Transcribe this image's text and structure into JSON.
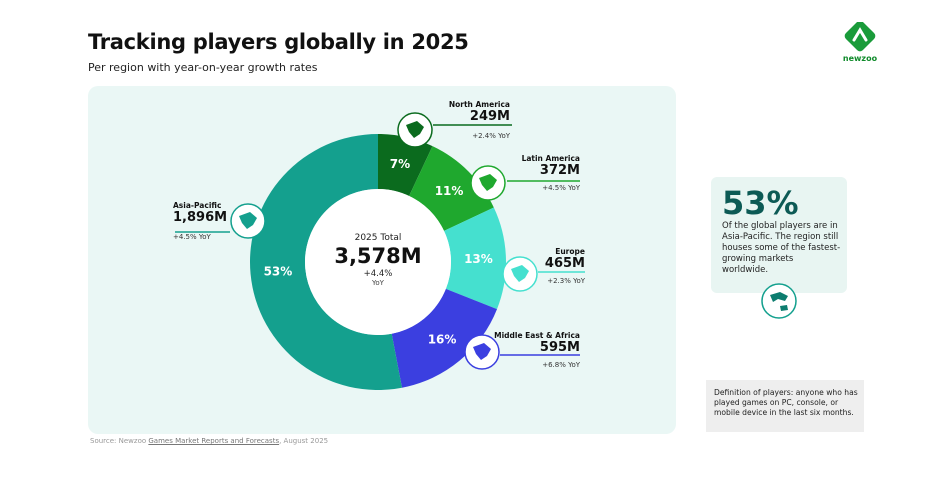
{
  "header": {
    "title": "Tracking players globally in 2025",
    "subtitle": "Per region with year-on-year growth rates"
  },
  "brand": {
    "logo_text": "newzoo",
    "color": "#1a9b3a"
  },
  "chart_data": {
    "type": "pie",
    "center": {
      "label": "2025 Total",
      "value": "3,578M",
      "growth": "+4.4%",
      "growth_unit": "YoY"
    },
    "slices": [
      {
        "region": "North America",
        "percent_label": "7%",
        "share": 7,
        "value": "249M",
        "growth": "+2.4% YoY",
        "color": "#0b6b1e",
        "icon": "north-america-map-icon"
      },
      {
        "region": "Latin America",
        "percent_label": "11%",
        "share": 11,
        "value": "372M",
        "growth": "+4.5% YoY",
        "color": "#1fa82e",
        "icon": "latin-america-map-icon"
      },
      {
        "region": "Europe",
        "percent_label": "13%",
        "share": 13,
        "value": "465M",
        "growth": "+2.3% YoY",
        "color": "#45e0cf",
        "icon": "europe-map-icon"
      },
      {
        "region": "Middle East & Africa",
        "percent_label": "16%",
        "share": 16,
        "value": "595M",
        "growth": "+6.8% YoY",
        "color": "#3b3fe0",
        "icon": "africa-map-icon"
      },
      {
        "region": "Asia-Pacific",
        "percent_label": "53%",
        "share": 53,
        "value": "1,896M",
        "growth": "+4.5% YoY",
        "color": "#14a08e",
        "icon": "asia-pacific-map-icon"
      }
    ]
  },
  "highlight": {
    "value": "53%",
    "text": "Of the global players are in Asia-Pacific. The region still houses some of the fastest-growing markets worldwide.",
    "icon": "asia-pacific-map-icon"
  },
  "definition": {
    "text": "Definition of players: anyone who has played games on PC, console, or mobile device in the last six months."
  },
  "source": {
    "prefix": "Source: Newzoo ",
    "link": "Games Market Reports and Forecasts",
    "suffix": ", August 2025"
  }
}
